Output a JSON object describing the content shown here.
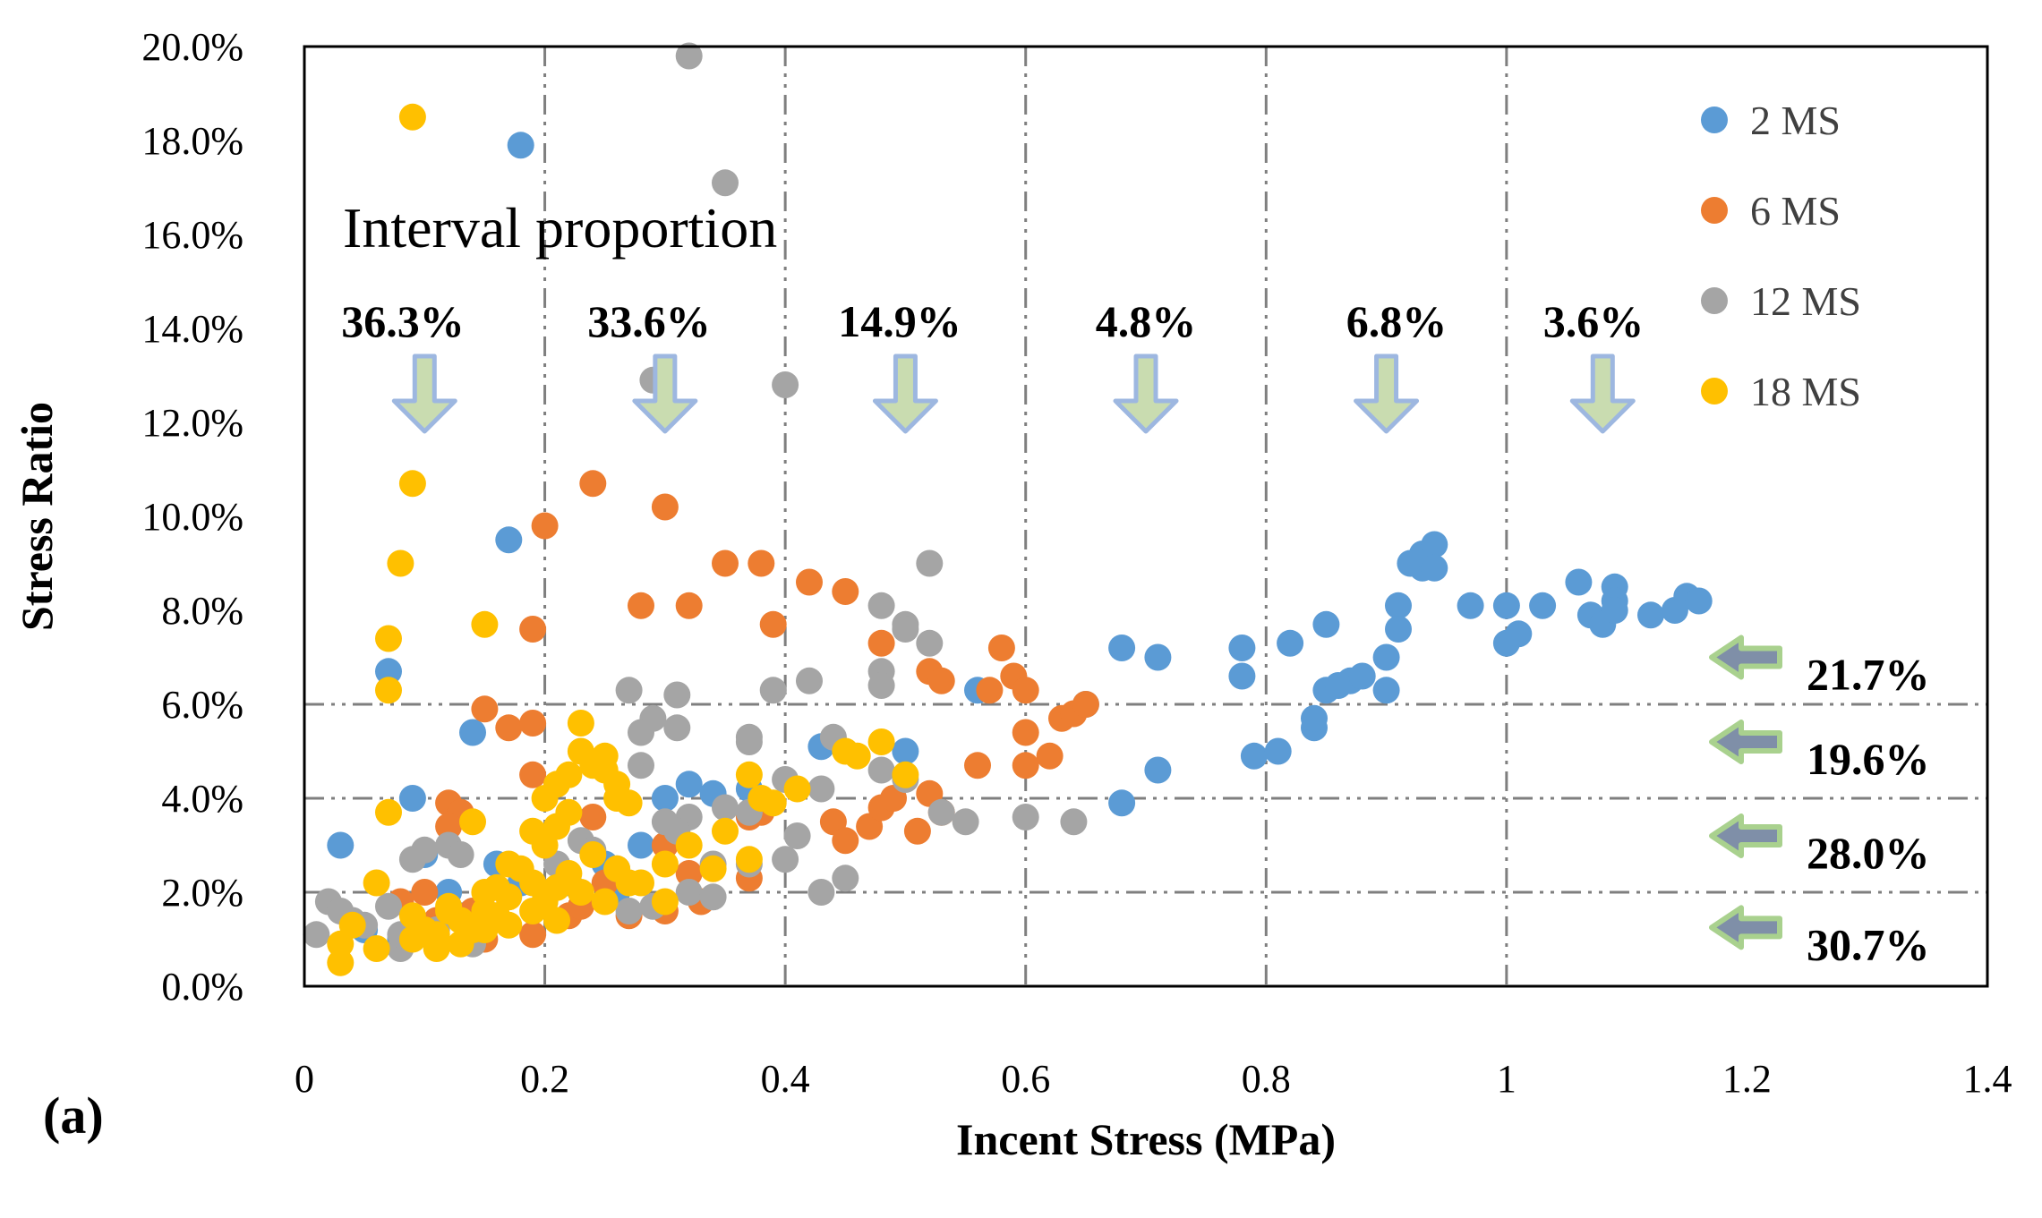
{
  "chart_data": {
    "type": "scatter",
    "panel_label": "(a)",
    "xlabel": "Incent Stress (MPa)",
    "ylabel": "Stress Ratio",
    "xlim": [
      0,
      1.4
    ],
    "ylim": [
      0,
      0.2
    ],
    "x_ticks": [
      "0",
      "0.2",
      "0.4",
      "0.6",
      "0.8",
      "1",
      "1.2",
      "1.4"
    ],
    "y_ticks": [
      "0.0%",
      "2.0%",
      "4.0%",
      "6.0%",
      "8.0%",
      "10.0%",
      "12.0%",
      "14.0%",
      "16.0%",
      "18.0%",
      "20.0%"
    ],
    "vertical_dividers": [
      0.2,
      0.4,
      0.6,
      0.8,
      1.0
    ],
    "horizontal_dividers": [
      0.02,
      0.04,
      0.06
    ],
    "interval_title": "Interval proportion",
    "x_intervals": [
      {
        "label": "36.3%",
        "x": 0.1
      },
      {
        "label": "33.6%",
        "x": 0.3
      },
      {
        "label": "14.9%",
        "x": 0.5
      },
      {
        "label": "4.8%",
        "x": 0.7
      },
      {
        "label": "6.8%",
        "x": 0.9
      },
      {
        "label": "3.6%",
        "x": 1.08
      }
    ],
    "y_intervals": [
      {
        "label": "21.7%",
        "y": 0.07
      },
      {
        "label": "19.6%",
        "y": 0.052
      },
      {
        "label": "28.0%",
        "y": 0.032
      },
      {
        "label": "30.7%",
        "y": 0.0125
      }
    ],
    "series": [
      {
        "name": "2 MS",
        "color": "#5B9BD5",
        "points": [
          [
            0.03,
            0.03
          ],
          [
            0.07,
            0.067
          ],
          [
            0.09,
            0.04
          ],
          [
            0.14,
            0.054
          ],
          [
            0.17,
            0.095
          ],
          [
            0.18,
            0.179
          ],
          [
            0.18,
            0.022
          ],
          [
            0.1,
            0.028
          ],
          [
            0.12,
            0.02
          ],
          [
            0.16,
            0.026
          ],
          [
            0.22,
            0.022
          ],
          [
            0.25,
            0.026
          ],
          [
            0.28,
            0.03
          ],
          [
            0.3,
            0.04
          ],
          [
            0.32,
            0.043
          ],
          [
            0.34,
            0.041
          ],
          [
            0.37,
            0.042
          ],
          [
            0.43,
            0.051
          ],
          [
            0.5,
            0.05
          ],
          [
            0.56,
            0.063
          ],
          [
            0.65,
            0.06
          ],
          [
            0.68,
            0.072
          ],
          [
            0.71,
            0.07
          ],
          [
            0.68,
            0.039
          ],
          [
            0.71,
            0.046
          ],
          [
            0.78,
            0.072
          ],
          [
            0.78,
            0.066
          ],
          [
            0.79,
            0.049
          ],
          [
            0.81,
            0.05
          ],
          [
            0.82,
            0.073
          ],
          [
            0.84,
            0.055
          ],
          [
            0.84,
            0.057
          ],
          [
            0.85,
            0.077
          ],
          [
            0.85,
            0.063
          ],
          [
            0.86,
            0.064
          ],
          [
            0.87,
            0.065
          ],
          [
            0.88,
            0.066
          ],
          [
            0.9,
            0.07
          ],
          [
            0.9,
            0.063
          ],
          [
            0.91,
            0.081
          ],
          [
            0.91,
            0.076
          ],
          [
            0.92,
            0.09
          ],
          [
            0.93,
            0.089
          ],
          [
            0.93,
            0.092
          ],
          [
            0.94,
            0.094
          ],
          [
            0.94,
            0.089
          ],
          [
            0.97,
            0.081
          ],
          [
            1.0,
            0.081
          ],
          [
            1.0,
            0.073
          ],
          [
            1.01,
            0.075
          ],
          [
            1.03,
            0.081
          ],
          [
            1.06,
            0.086
          ],
          [
            1.07,
            0.079
          ],
          [
            1.08,
            0.077
          ],
          [
            1.09,
            0.085
          ],
          [
            1.09,
            0.082
          ],
          [
            1.09,
            0.08
          ],
          [
            1.12,
            0.079
          ],
          [
            1.14,
            0.08
          ],
          [
            1.15,
            0.083
          ],
          [
            1.16,
            0.082
          ],
          [
            0.05,
            0.012
          ],
          [
            0.08,
            0.01
          ],
          [
            0.13,
            0.015
          ],
          [
            0.2,
            0.018
          ],
          [
            0.26,
            0.02
          ]
        ]
      },
      {
        "name": "6 MS",
        "color": "#ED7D31",
        "points": [
          [
            0.2,
            0.098
          ],
          [
            0.24,
            0.107
          ],
          [
            0.3,
            0.102
          ],
          [
            0.19,
            0.076
          ],
          [
            0.28,
            0.081
          ],
          [
            0.32,
            0.081
          ],
          [
            0.35,
            0.09
          ],
          [
            0.38,
            0.09
          ],
          [
            0.39,
            0.077
          ],
          [
            0.42,
            0.086
          ],
          [
            0.45,
            0.084
          ],
          [
            0.48,
            0.073
          ],
          [
            0.52,
            0.067
          ],
          [
            0.53,
            0.065
          ],
          [
            0.58,
            0.072
          ],
          [
            0.59,
            0.066
          ],
          [
            0.6,
            0.063
          ],
          [
            0.6,
            0.054
          ],
          [
            0.62,
            0.049
          ],
          [
            0.6,
            0.047
          ],
          [
            0.56,
            0.047
          ],
          [
            0.63,
            0.057
          ],
          [
            0.64,
            0.058
          ],
          [
            0.65,
            0.06
          ],
          [
            0.57,
            0.063
          ],
          [
            0.15,
            0.059
          ],
          [
            0.17,
            0.055
          ],
          [
            0.19,
            0.056
          ],
          [
            0.19,
            0.045
          ],
          [
            0.12,
            0.039
          ],
          [
            0.13,
            0.037
          ],
          [
            0.12,
            0.034
          ],
          [
            0.24,
            0.036
          ],
          [
            0.3,
            0.03
          ],
          [
            0.32,
            0.024
          ],
          [
            0.37,
            0.036
          ],
          [
            0.38,
            0.037
          ],
          [
            0.37,
            0.023
          ],
          [
            0.44,
            0.035
          ],
          [
            0.45,
            0.031
          ],
          [
            0.47,
            0.034
          ],
          [
            0.48,
            0.038
          ],
          [
            0.49,
            0.04
          ],
          [
            0.51,
            0.033
          ],
          [
            0.52,
            0.041
          ],
          [
            0.53,
            0.037
          ],
          [
            0.1,
            0.02
          ],
          [
            0.11,
            0.014
          ],
          [
            0.15,
            0.01
          ],
          [
            0.19,
            0.011
          ],
          [
            0.22,
            0.015
          ],
          [
            0.23,
            0.017
          ],
          [
            0.27,
            0.015
          ],
          [
            0.3,
            0.016
          ],
          [
            0.33,
            0.018
          ],
          [
            0.08,
            0.018
          ],
          [
            0.14,
            0.016
          ],
          [
            0.25,
            0.022
          ]
        ]
      },
      {
        "name": "12 MS",
        "color": "#A5A5A5",
        "points": [
          [
            0.32,
            0.198
          ],
          [
            0.35,
            0.171
          ],
          [
            0.29,
            0.129
          ],
          [
            0.4,
            0.128
          ],
          [
            0.52,
            0.09
          ],
          [
            0.48,
            0.081
          ],
          [
            0.5,
            0.077
          ],
          [
            0.5,
            0.076
          ],
          [
            0.52,
            0.073
          ],
          [
            0.48,
            0.067
          ],
          [
            0.48,
            0.064
          ],
          [
            0.42,
            0.065
          ],
          [
            0.39,
            0.063
          ],
          [
            0.27,
            0.063
          ],
          [
            0.31,
            0.062
          ],
          [
            0.29,
            0.057
          ],
          [
            0.31,
            0.055
          ],
          [
            0.28,
            0.054
          ],
          [
            0.37,
            0.053
          ],
          [
            0.37,
            0.052
          ],
          [
            0.44,
            0.053
          ],
          [
            0.48,
            0.046
          ],
          [
            0.5,
            0.044
          ],
          [
            0.43,
            0.042
          ],
          [
            0.35,
            0.038
          ],
          [
            0.32,
            0.036
          ],
          [
            0.3,
            0.035
          ],
          [
            0.37,
            0.037
          ],
          [
            0.4,
            0.044
          ],
          [
            0.41,
            0.032
          ],
          [
            0.4,
            0.027
          ],
          [
            0.37,
            0.026
          ],
          [
            0.34,
            0.026
          ],
          [
            0.32,
            0.02
          ],
          [
            0.34,
            0.019
          ],
          [
            0.43,
            0.02
          ],
          [
            0.45,
            0.023
          ],
          [
            0.53,
            0.037
          ],
          [
            0.55,
            0.035
          ],
          [
            0.6,
            0.036
          ],
          [
            0.64,
            0.035
          ],
          [
            0.26,
            0.025
          ],
          [
            0.27,
            0.016
          ],
          [
            0.29,
            0.017
          ],
          [
            0.28,
            0.047
          ],
          [
            0.31,
            0.033
          ],
          [
            0.1,
            0.029
          ],
          [
            0.12,
            0.03
          ],
          [
            0.13,
            0.028
          ],
          [
            0.01,
            0.011
          ],
          [
            0.02,
            0.018
          ],
          [
            0.03,
            0.016
          ],
          [
            0.04,
            0.014
          ],
          [
            0.05,
            0.013
          ],
          [
            0.07,
            0.017
          ],
          [
            0.08,
            0.008
          ],
          [
            0.08,
            0.011
          ],
          [
            0.09,
            0.027
          ],
          [
            0.11,
            0.012
          ],
          [
            0.14,
            0.009
          ],
          [
            0.16,
            0.015
          ],
          [
            0.2,
            0.02
          ],
          [
            0.21,
            0.026
          ],
          [
            0.23,
            0.031
          ],
          [
            0.24,
            0.029
          ]
        ]
      },
      {
        "name": "18 MS",
        "color": "#FFC000",
        "points": [
          [
            0.09,
            0.185
          ],
          [
            0.09,
            0.107
          ],
          [
            0.08,
            0.09
          ],
          [
            0.07,
            0.074
          ],
          [
            0.07,
            0.063
          ],
          [
            0.15,
            0.077
          ],
          [
            0.07,
            0.037
          ],
          [
            0.06,
            0.022
          ],
          [
            0.04,
            0.013
          ],
          [
            0.03,
            0.009
          ],
          [
            0.03,
            0.005
          ],
          [
            0.06,
            0.008
          ],
          [
            0.09,
            0.01
          ],
          [
            0.1,
            0.012
          ],
          [
            0.11,
            0.008
          ],
          [
            0.12,
            0.016
          ],
          [
            0.13,
            0.009
          ],
          [
            0.14,
            0.012
          ],
          [
            0.15,
            0.02
          ],
          [
            0.16,
            0.015
          ],
          [
            0.17,
            0.019
          ],
          [
            0.18,
            0.025
          ],
          [
            0.19,
            0.022
          ],
          [
            0.2,
            0.018
          ],
          [
            0.21,
            0.014
          ],
          [
            0.22,
            0.024
          ],
          [
            0.23,
            0.02
          ],
          [
            0.24,
            0.028
          ],
          [
            0.25,
            0.018
          ],
          [
            0.26,
            0.025
          ],
          [
            0.27,
            0.022
          ],
          [
            0.2,
            0.04
          ],
          [
            0.21,
            0.043
          ],
          [
            0.22,
            0.045
          ],
          [
            0.23,
            0.05
          ],
          [
            0.23,
            0.056
          ],
          [
            0.24,
            0.047
          ],
          [
            0.25,
            0.049
          ],
          [
            0.25,
            0.046
          ],
          [
            0.26,
            0.043
          ],
          [
            0.26,
            0.04
          ],
          [
            0.27,
            0.039
          ],
          [
            0.19,
            0.033
          ],
          [
            0.2,
            0.03
          ],
          [
            0.21,
            0.034
          ],
          [
            0.22,
            0.037
          ],
          [
            0.14,
            0.035
          ],
          [
            0.16,
            0.021
          ],
          [
            0.17,
            0.026
          ],
          [
            0.12,
            0.017
          ],
          [
            0.3,
            0.026
          ],
          [
            0.32,
            0.03
          ],
          [
            0.34,
            0.025
          ],
          [
            0.35,
            0.033
          ],
          [
            0.37,
            0.045
          ],
          [
            0.38,
            0.04
          ],
          [
            0.39,
            0.039
          ],
          [
            0.37,
            0.027
          ],
          [
            0.41,
            0.042
          ],
          [
            0.45,
            0.05
          ],
          [
            0.46,
            0.049
          ],
          [
            0.48,
            0.052
          ],
          [
            0.5,
            0.045
          ],
          [
            0.28,
            0.022
          ],
          [
            0.3,
            0.018
          ],
          [
            0.09,
            0.015
          ],
          [
            0.11,
            0.011
          ],
          [
            0.13,
            0.014
          ],
          [
            0.15,
            0.012
          ],
          [
            0.17,
            0.013
          ],
          [
            0.19,
            0.016
          ],
          [
            0.21,
            0.021
          ],
          [
            0.15,
            0.016
          ]
        ]
      }
    ]
  }
}
